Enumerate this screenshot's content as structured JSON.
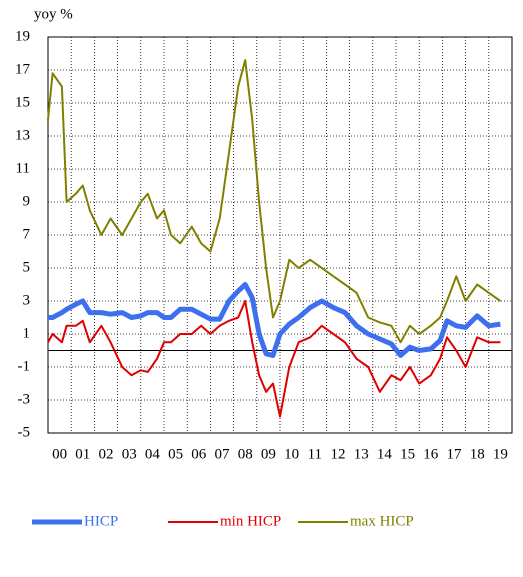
{
  "chart_data": {
    "type": "line",
    "y_label": "yoy %",
    "x": [
      2000.0,
      2000.2,
      2000.6,
      2000.8,
      2001.2,
      2001.5,
      2001.8,
      2002.3,
      2002.7,
      2003.2,
      2003.6,
      2004.0,
      2004.3,
      2004.7,
      2005.0,
      2005.3,
      2005.7,
      2006.2,
      2006.6,
      2007.0,
      2007.4,
      2007.8,
      2008.2,
      2008.5,
      2008.8,
      2009.1,
      2009.4,
      2009.7,
      2010.0,
      2010.4,
      2010.8,
      2011.3,
      2011.8,
      2012.3,
      2012.8,
      2013.3,
      2013.8,
      2014.3,
      2014.8,
      2015.2,
      2015.6,
      2016.0,
      2016.5,
      2016.9,
      2017.2,
      2017.6,
      2018.0,
      2018.5,
      2019.0,
      2019.5
    ],
    "series": [
      {
        "name": "HICP",
        "color": "#3d6fef",
        "width": 5,
        "values": [
          2.0,
          2.0,
          2.3,
          2.5,
          2.8,
          3.0,
          2.3,
          2.3,
          2.2,
          2.3,
          2.0,
          2.1,
          2.3,
          2.3,
          2.0,
          2.0,
          2.5,
          2.5,
          2.2,
          1.9,
          1.9,
          3.0,
          3.6,
          4.0,
          3.2,
          1.0,
          -0.2,
          -0.3,
          1.0,
          1.6,
          2.0,
          2.6,
          3.0,
          2.6,
          2.3,
          1.5,
          1.0,
          0.7,
          0.4,
          -0.3,
          0.2,
          0.0,
          0.1,
          0.6,
          1.8,
          1.5,
          1.4,
          2.1,
          1.5,
          1.6
        ]
      },
      {
        "name": "min HICP",
        "color": "#e00000",
        "width": 2,
        "values": [
          0.5,
          1.0,
          0.5,
          1.5,
          1.5,
          1.8,
          0.5,
          1.5,
          0.5,
          -1.0,
          -1.5,
          -1.2,
          -1.3,
          -0.5,
          0.5,
          0.5,
          1.0,
          1.0,
          1.5,
          1.0,
          1.5,
          1.8,
          2.0,
          3.0,
          0.5,
          -1.5,
          -2.5,
          -2.0,
          -4.0,
          -1.0,
          0.5,
          0.8,
          1.5,
          1.0,
          0.5,
          -0.5,
          -1.0,
          -2.5,
          -1.5,
          -1.8,
          -1.0,
          -2.0,
          -1.5,
          -0.5,
          0.8,
          0.0,
          -1.0,
          0.8,
          0.5,
          0.5
        ]
      },
      {
        "name": "max HICP",
        "color": "#808000",
        "width": 2,
        "values": [
          14.0,
          16.8,
          16.0,
          9.0,
          9.5,
          10.0,
          8.5,
          7.0,
          8.0,
          7.0,
          8.0,
          9.0,
          9.5,
          8.0,
          8.5,
          7.0,
          6.5,
          7.5,
          6.5,
          6.0,
          8.0,
          12.0,
          16.0,
          17.6,
          14.0,
          9.0,
          5.0,
          2.0,
          3.0,
          5.5,
          5.0,
          5.5,
          5.0,
          4.5,
          4.0,
          3.5,
          2.0,
          1.7,
          1.5,
          0.5,
          1.5,
          1.0,
          1.5,
          2.0,
          3.0,
          4.5,
          3.0,
          4.0,
          3.5,
          3.0
        ]
      }
    ],
    "xlim": [
      2000,
      2020
    ],
    "xticks": [
      {
        "value": 2000,
        "label": "00"
      },
      {
        "value": 2001,
        "label": "01"
      },
      {
        "value": 2002,
        "label": "02"
      },
      {
        "value": 2003,
        "label": "03"
      },
      {
        "value": 2004,
        "label": "04"
      },
      {
        "value": 2005,
        "label": "05"
      },
      {
        "value": 2006,
        "label": "06"
      },
      {
        "value": 2007,
        "label": "07"
      },
      {
        "value": 2008,
        "label": "08"
      },
      {
        "value": 2009,
        "label": "09"
      },
      {
        "value": 2010,
        "label": "10"
      },
      {
        "value": 2011,
        "label": "11"
      },
      {
        "value": 2012,
        "label": "12"
      },
      {
        "value": 2013,
        "label": "13"
      },
      {
        "value": 2014,
        "label": "14"
      },
      {
        "value": 2015,
        "label": "15"
      },
      {
        "value": 2016,
        "label": "16"
      },
      {
        "value": 2017,
        "label": "17"
      },
      {
        "value": 2018,
        "label": "18"
      },
      {
        "value": 2019,
        "label": "19"
      }
    ],
    "ylim": [
      -5,
      19
    ],
    "yticks": [
      -5,
      -3,
      -1,
      1,
      3,
      5,
      7,
      9,
      11,
      13,
      15,
      17,
      19
    ],
    "grid": true
  }
}
